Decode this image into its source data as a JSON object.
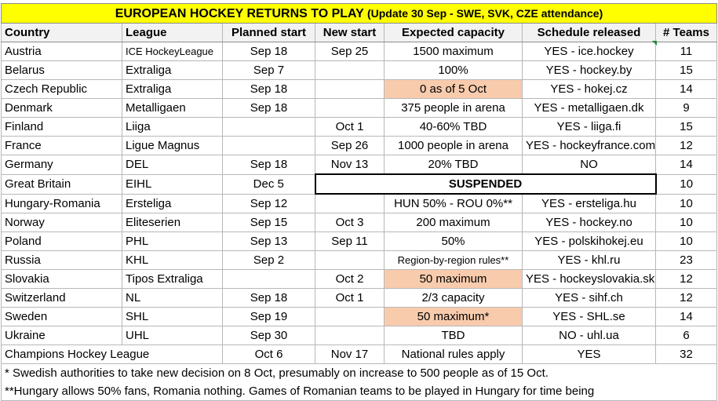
{
  "title": {
    "main": "EUROPEAN HOCKEY RETURNS TO PLAY",
    "sub": "(Update 30 Sep - SWE, SVK, CZE attendance)"
  },
  "headers": [
    "Country",
    "League",
    "Planned start",
    "New start",
    "Expected capacity",
    "Schedule released",
    "# Teams"
  ],
  "rows": [
    {
      "country": "Austria",
      "league": "ICE HockeyLeague",
      "planned": "Sep 18",
      "new_start": "Sep 25",
      "capacity": "1500 maximum",
      "schedule": "YES - ice.hockey",
      "teams": "11"
    },
    {
      "country": "Belarus",
      "league": "Extraliga",
      "planned": "Sep 7",
      "new_start": "",
      "capacity": "100%",
      "schedule": "YES - hockey.by",
      "teams": "15"
    },
    {
      "country": "Czech Republic",
      "league": "Extraliga",
      "planned": "Sep 18",
      "new_start": "",
      "capacity": "0 as of 5 Oct",
      "schedule": "YES - hokej.cz",
      "teams": "14"
    },
    {
      "country": "Denmark",
      "league": "Metalligaen",
      "planned": "Sep 18",
      "new_start": "",
      "capacity": "375 people in arena",
      "schedule": "YES - metalligaen.dk",
      "teams": "9"
    },
    {
      "country": "Finland",
      "league": "Liiga",
      "planned": "",
      "new_start": "Oct 1",
      "capacity": "40-60% TBD",
      "schedule": "YES - liiga.fi",
      "teams": "15"
    },
    {
      "country": "France",
      "league": "Ligue Magnus",
      "planned": "",
      "new_start": "Sep 26",
      "capacity": "1000 people in arena",
      "schedule": "YES - hockeyfrance.com",
      "teams": "12"
    },
    {
      "country": "Germany",
      "league": "DEL",
      "planned": "Sep 18",
      "new_start": "Nov 13",
      "capacity": "20% TBD",
      "schedule": "NO",
      "teams": "14"
    },
    {
      "country": "Great Britain",
      "league": "EIHL",
      "planned": "Dec 5",
      "suspended": "SUSPENDED",
      "teams": "10"
    },
    {
      "country": "Hungary-Romania",
      "league": "Ersteliga",
      "planned": "Sep 12",
      "new_start": "",
      "capacity": "HUN 50% - ROU 0%**",
      "schedule": "YES - ersteliga.hu",
      "teams": "10"
    },
    {
      "country": "Norway",
      "league": "Eliteserien",
      "planned": "Sep 15",
      "new_start": "Oct 3",
      "capacity": "200 maximum",
      "schedule": "YES - hockey.no",
      "teams": "10"
    },
    {
      "country": "Poland",
      "league": "PHL",
      "planned": "Sep 13",
      "new_start": "Sep 11",
      "capacity": "50%",
      "schedule": "YES - polskihokej.eu",
      "teams": "10"
    },
    {
      "country": "Russia",
      "league": "KHL",
      "planned": "Sep 2",
      "new_start": "",
      "capacity": "Region-by-region rules**",
      "schedule": "YES - khl.ru",
      "teams": "23"
    },
    {
      "country": "Slovakia",
      "league": "Tipos Extraliga",
      "planned": "",
      "new_start": "Oct 2",
      "capacity": "50 maximum",
      "schedule": "YES - hockeyslovakia.sk",
      "teams": "12"
    },
    {
      "country": "Switzerland",
      "league": "NL",
      "planned": "Sep 18",
      "new_start": "Oct 1",
      "capacity": "2/3 capacity",
      "schedule": "YES - sihf.ch",
      "teams": "12"
    },
    {
      "country": "Sweden",
      "league": "SHL",
      "planned": "Sep 19",
      "new_start": "",
      "capacity": "50 maximum*",
      "schedule": "YES - SHL.se",
      "teams": "14"
    },
    {
      "country": "Ukraine",
      "league": "UHL",
      "planned": "Sep 30",
      "new_start": "",
      "capacity": "TBD",
      "schedule": "NO - uhl.ua",
      "teams": "6"
    }
  ],
  "champions": {
    "name": "Champions Hockey League",
    "planned": "Oct 6",
    "new_start": "Nov 17",
    "capacity": "National rules apply",
    "schedule": "YES",
    "teams": "32"
  },
  "notes": [
    "* Swedish authorities to take new decision on 8 Oct, presumably on increase to 500 people as of 15 Oct.",
    "**Hungary allows 50% fans, Romania nothing. Games of Romanian teams to be played in Hungary for time being"
  ],
  "colors": {
    "title_bg": "#ffff00",
    "highlight": "#f8cbad",
    "header_bg": "#f2f2f2"
  }
}
